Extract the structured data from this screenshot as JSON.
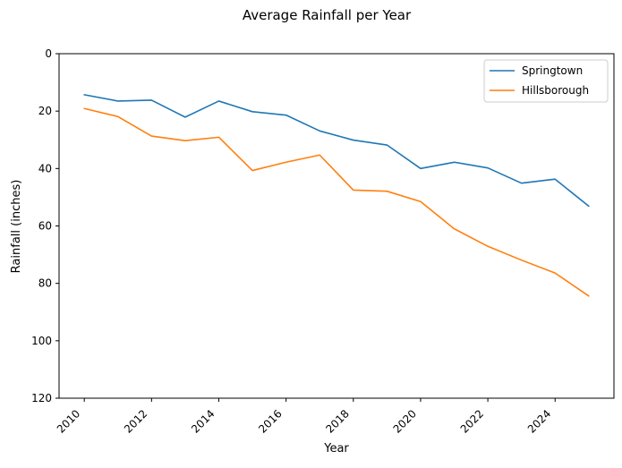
{
  "chart_data": {
    "type": "line",
    "title": "Average Rainfall per Year",
    "xlabel": "Year",
    "ylabel": "Rainfall (inches)",
    "x": [
      2010,
      2011,
      2012,
      2013,
      2014,
      2015,
      2016,
      2017,
      2018,
      2019,
      2020,
      2021,
      2022,
      2023,
      2024,
      2025
    ],
    "series": [
      {
        "name": "Springtown",
        "color": "#1f77b4",
        "values": [
          14.3,
          16.5,
          16.2,
          22.1,
          16.5,
          20.2,
          21.4,
          26.9,
          30.1,
          31.8,
          40.0,
          37.8,
          39.8,
          45.1,
          43.7,
          53.1
        ]
      },
      {
        "name": "Hillsborough",
        "color": "#ff7f0e",
        "values": [
          19.1,
          21.9,
          28.7,
          30.3,
          29.1,
          40.7,
          37.8,
          35.3,
          47.5,
          47.9,
          51.5,
          61.0,
          67.1,
          71.9,
          76.4,
          84.4
        ]
      }
    ],
    "xticks": [
      "2010",
      "2012",
      "2014",
      "2016",
      "2018",
      "2020",
      "2022",
      "2024"
    ],
    "yticks": [
      "0",
      "20",
      "40",
      "60",
      "80",
      "100",
      "120"
    ],
    "xlim": [
      2009.25,
      2025.75
    ],
    "ylim": [
      0,
      120
    ],
    "y_inverted": true,
    "grid": false,
    "legend_position": "upper right"
  }
}
